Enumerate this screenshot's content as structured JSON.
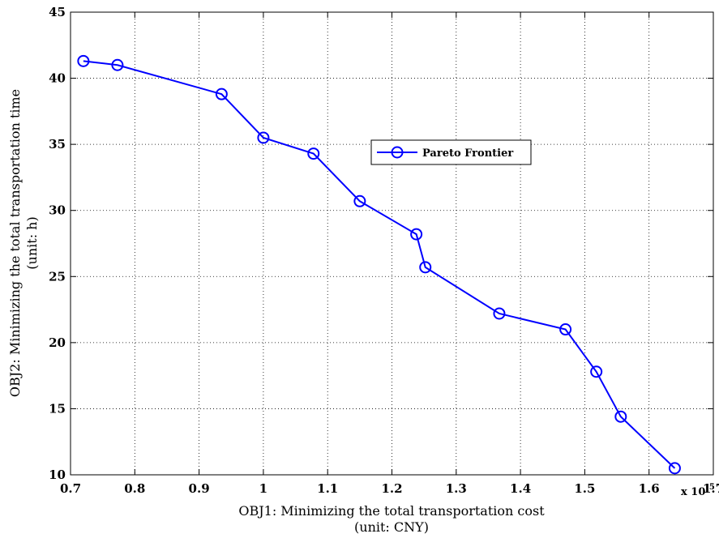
{
  "chart_data": {
    "type": "line",
    "title": "",
    "xlabel": "OBJ1: Minimizing the total transportation cost",
    "xlabel_unit": "(unit: CNY)",
    "ylabel": "OBJ2: Minimizing the total transportation time",
    "ylabel_unit": "(unit: h)",
    "x_exponent_label": "x 10",
    "x_exponent_power": "5",
    "xlim": [
      0.7,
      1.7
    ],
    "ylim": [
      10,
      45
    ],
    "x_ticks": [
      "0.7",
      "0.8",
      "0.9",
      "1",
      "1.1",
      "1.2",
      "1.3",
      "1.4",
      "1.5",
      "1.6",
      "1.7"
    ],
    "y_ticks": [
      "10",
      "15",
      "20",
      "25",
      "30",
      "35",
      "40",
      "45"
    ],
    "grid": true,
    "legend_position": "center-right",
    "series": [
      {
        "name": "Pareto Frontier",
        "color": "#0000ff",
        "marker": "circle",
        "x": [
          0.72,
          0.773,
          0.935,
          1.0,
          1.078,
          1.15,
          1.238,
          1.252,
          1.367,
          1.47,
          1.518,
          1.556,
          1.64
        ],
        "y": [
          41.3,
          41.0,
          38.8,
          35.5,
          34.3,
          30.7,
          28.2,
          25.7,
          22.2,
          21.0,
          17.8,
          14.4,
          10.5
        ]
      }
    ]
  }
}
